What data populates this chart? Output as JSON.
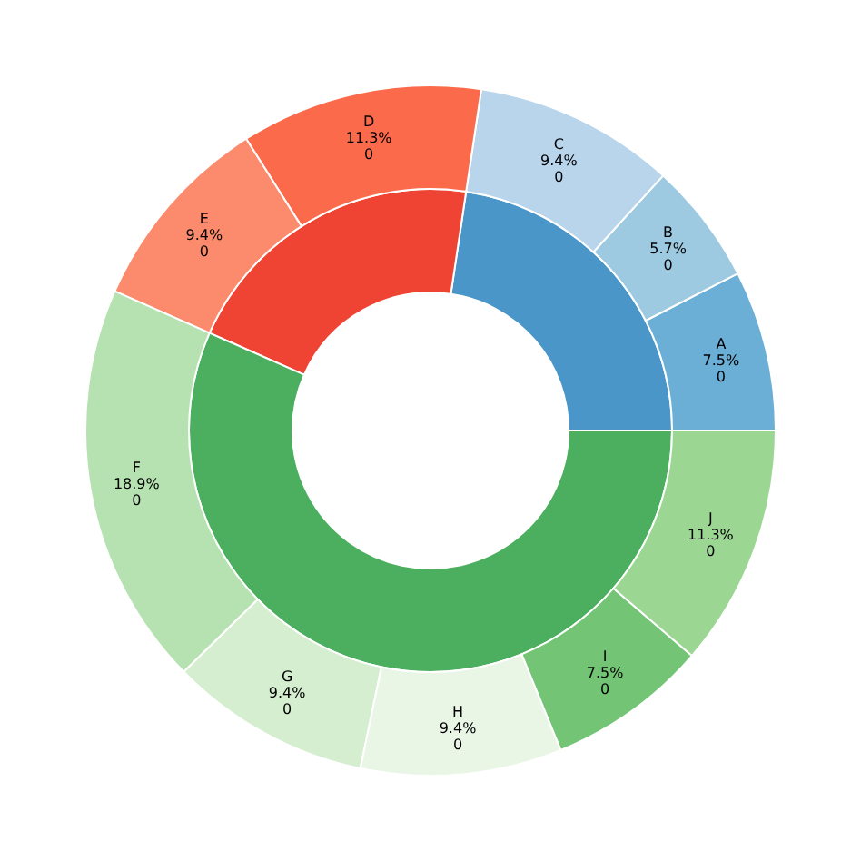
{
  "chart_data": [
    {
      "type": "donut",
      "categories": [
        null,
        null,
        null
      ],
      "values": [
        22.6,
        20.7,
        56.5
      ],
      "colors": [
        "#4a96c8",
        "#ef4433",
        "#4caf60"
      ],
      "legend": false
    },
    {
      "type": "donut",
      "categories": [
        "A",
        "B",
        "C",
        "D",
        "E",
        "F",
        "G",
        "H",
        "I",
        "J"
      ],
      "values": [
        7.5,
        5.7,
        9.4,
        11.3,
        9.4,
        18.9,
        9.4,
        9.4,
        7.5,
        11.3
      ],
      "value_labels": [
        "7.5%\n0",
        "5.7%\n0",
        "9.4%\n0",
        "11.3%\n0",
        "9.4%\n0",
        "18.9%\n0",
        "9.4%\n0",
        "9.4%\n0",
        "7.5%\n0",
        "11.3%\n0"
      ],
      "colors": [
        "#6baed6",
        "#9ecae1",
        "#b9d5ec",
        "#fb6a4a",
        "#fc8a6c",
        "#b6e1b0",
        "#d4eecf",
        "#e9f6e6",
        "#74c476",
        "#9bd693"
      ],
      "legend": false
    }
  ]
}
